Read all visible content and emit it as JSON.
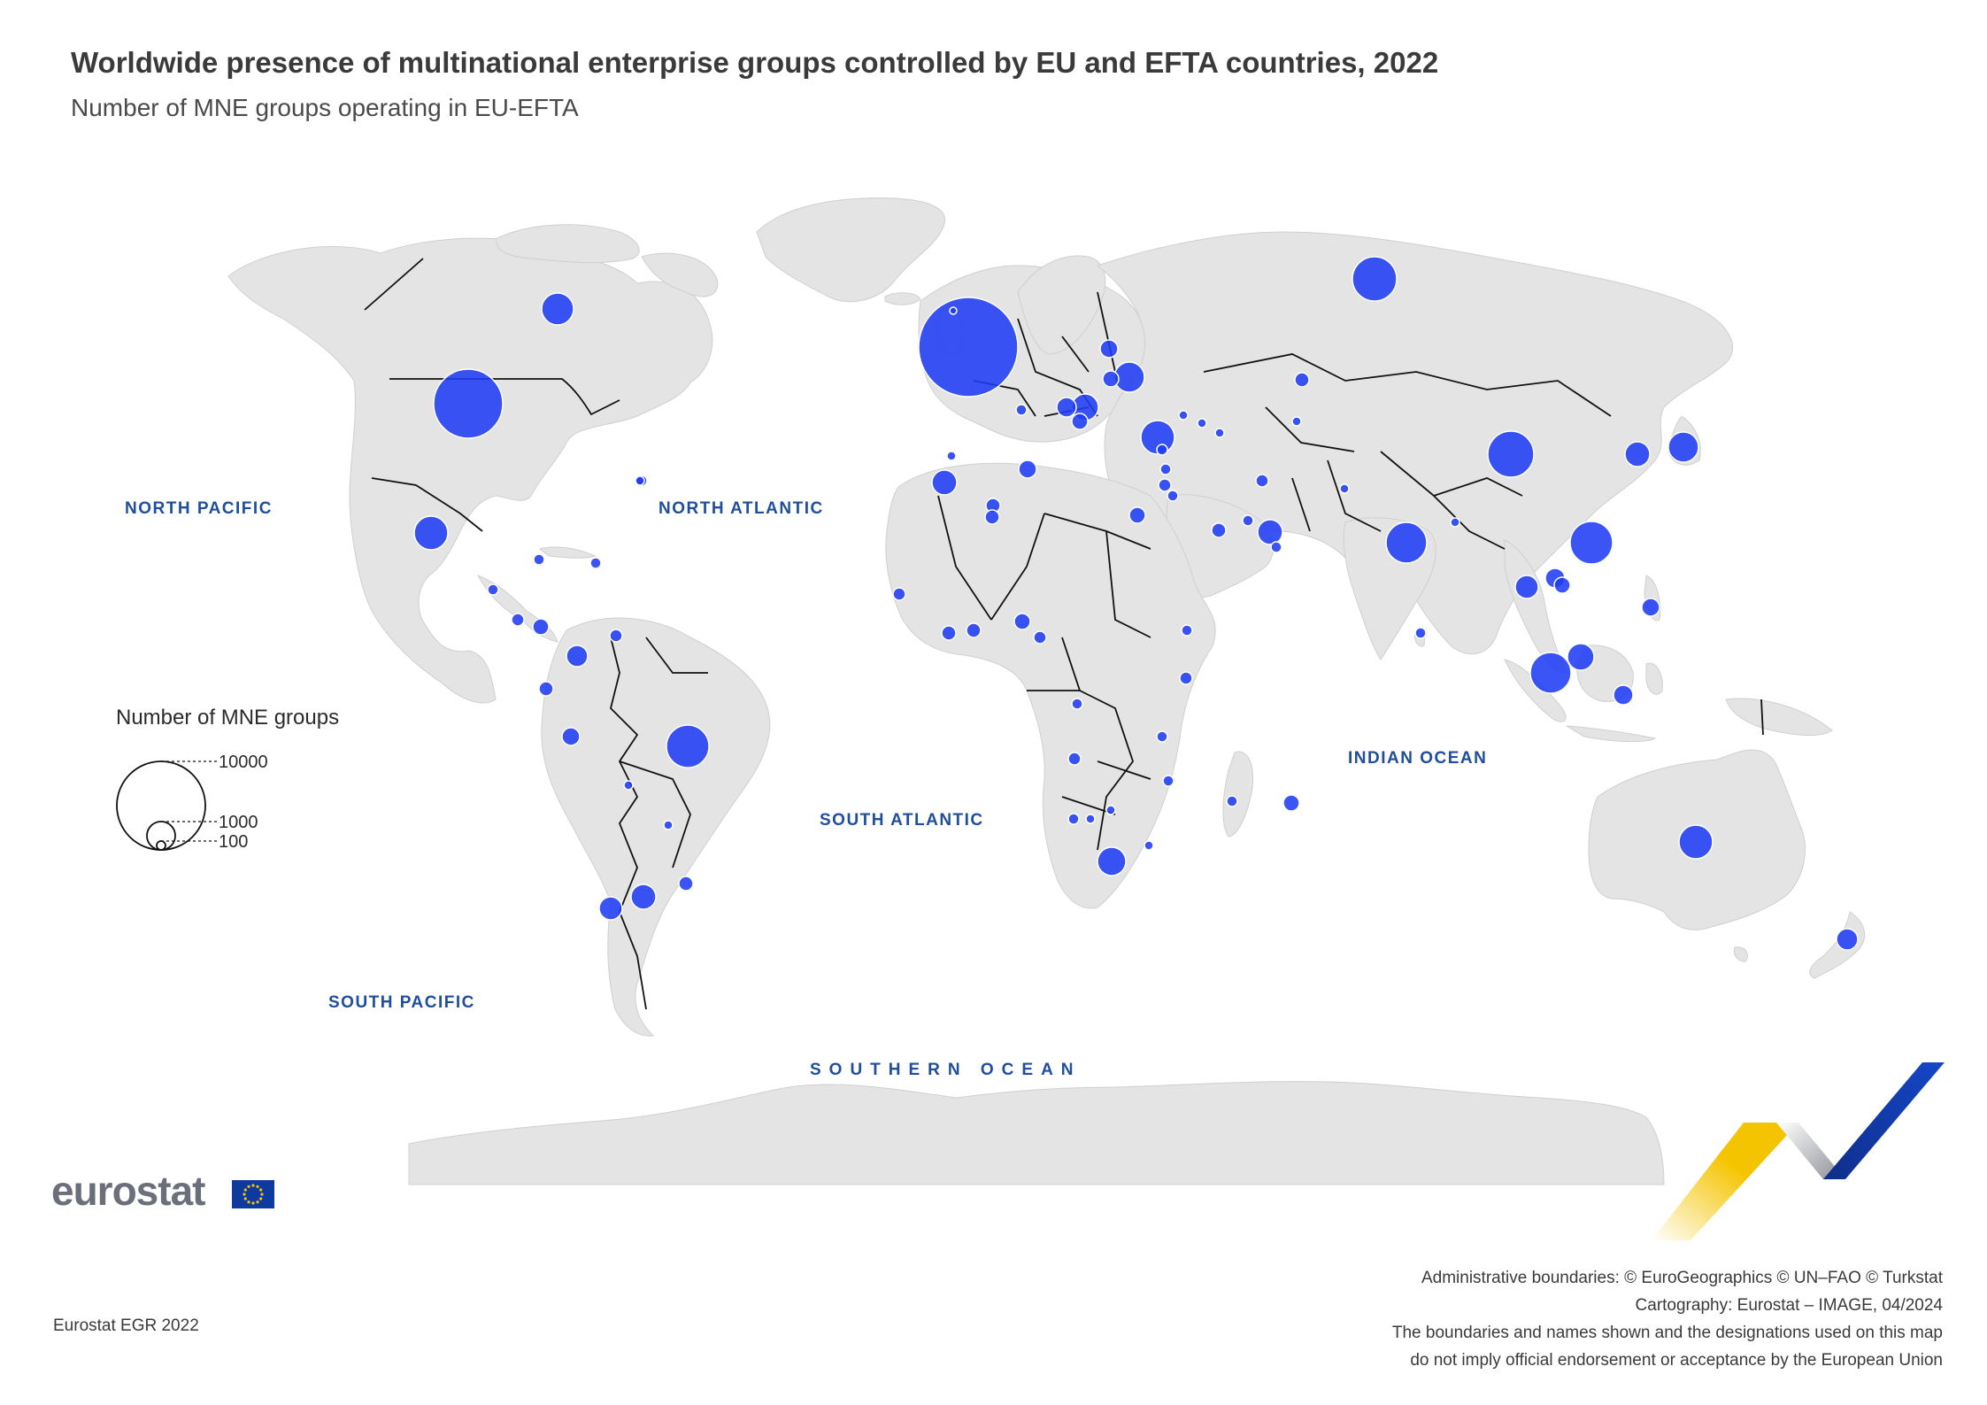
{
  "header": {
    "title": "Worldwide presence of multinational enterprise groups controlled by EU and EFTA countries, 2022",
    "subtitle": "Number of MNE groups operating in EU-EFTA"
  },
  "oceans": {
    "north_pacific": "NORTH PACIFIC",
    "north_atlantic": "NORTH ATLANTIC",
    "south_atlantic": "SOUTH ATLANTIC",
    "indian_ocean": "INDIAN OCEAN",
    "south_pacific": "SOUTH PACIFIC",
    "southern_ocean": "SOUTHERN OCEAN"
  },
  "legend": {
    "title": "Number of MNE groups",
    "values": [
      "10000",
      "1000",
      "100"
    ]
  },
  "logo": {
    "text": "eurostat",
    "flag_icon": "eu-flag-icon"
  },
  "footer": {
    "source": "Eurostat EGR 2022",
    "credits": [
      "Administrative boundaries: © EuroGeographics © UN–FAO © Turkstat",
      "Cartography: Eurostat – IMAGE, 04/2024",
      "The boundaries and names shown and the designations used on this map",
      "do not imply official endorsement or acceptance by the European Union"
    ]
  },
  "colors": {
    "bubble": "#1f3cf5",
    "land": "#e4e4e4",
    "border": "#111111",
    "ocean_label": "#1f4e9c",
    "accent_yellow": "#f5c400",
    "accent_blue": "#0e3aa0"
  }
}
